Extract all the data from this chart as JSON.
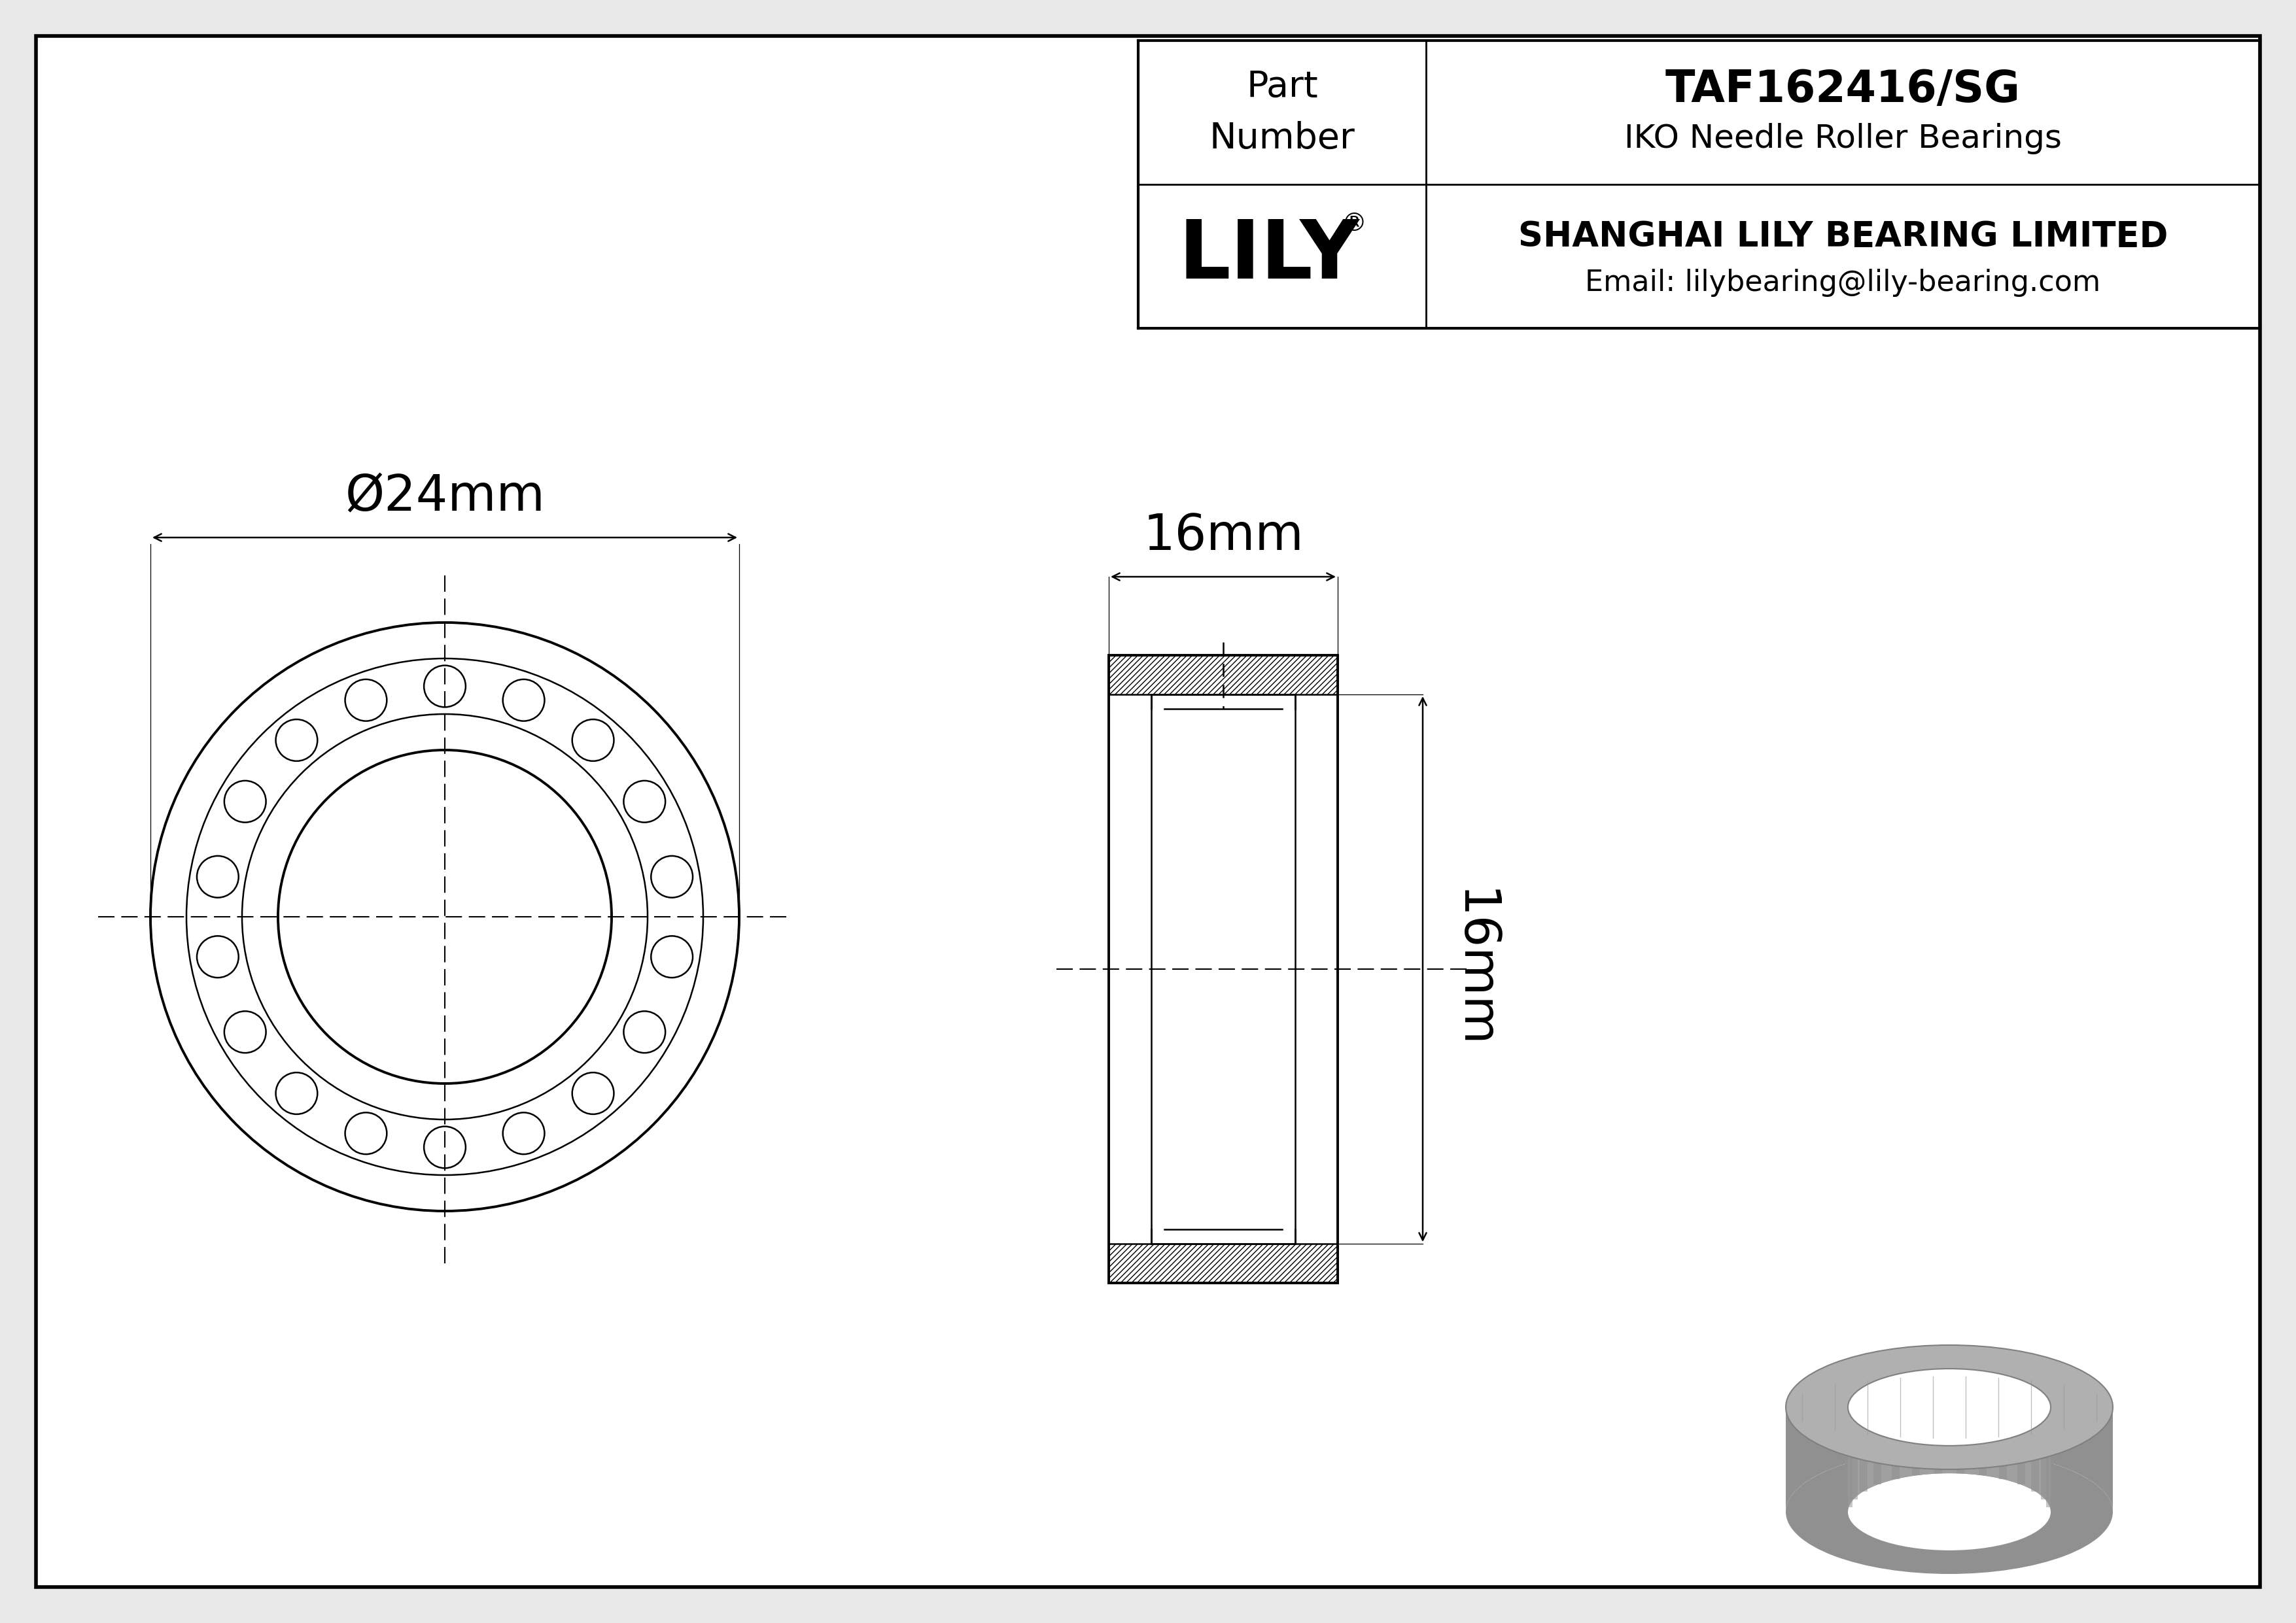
{
  "bg_color": "#e8e8e8",
  "border_color": "#000000",
  "line_color": "#000000",
  "white": "#ffffff",
  "title_company": "SHANGHAI LILY BEARING LIMITED",
  "title_email": "Email: lilybearing@lily-bearing.com",
  "part_label": "Part\nNumber",
  "part_number": "TAF162416/SG",
  "part_type": "IKO Needle Roller Bearings",
  "logo_text": "LILY",
  "dim_outer": "Ø24mm",
  "dim_width": "16mm",
  "dim_height": "16mm",
  "n_rollers": 18,
  "gray_3d": "#b0b0b0",
  "gray_3d_dark": "#909090",
  "gray_3d_mid": "#a0a0a0"
}
